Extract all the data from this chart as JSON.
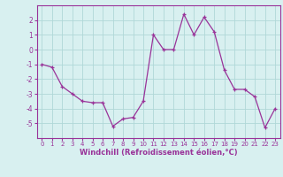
{
  "x": [
    0,
    1,
    2,
    3,
    4,
    5,
    6,
    7,
    8,
    9,
    10,
    11,
    12,
    13,
    14,
    15,
    16,
    17,
    18,
    19,
    20,
    21,
    22,
    23
  ],
  "y": [
    -1.0,
    -1.2,
    -2.5,
    -3.0,
    -3.5,
    -3.6,
    -3.6,
    -5.2,
    -4.7,
    -4.6,
    -3.5,
    1.0,
    0.0,
    0.0,
    2.4,
    1.0,
    2.2,
    1.2,
    -1.4,
    -2.7,
    -2.7,
    -3.2,
    -5.3,
    -4.0
  ],
  "line_color": "#993399",
  "marker": "+",
  "marker_size": 3,
  "bg_color": "#d8f0f0",
  "grid_color": "#b0d8d8",
  "axis_color": "#993399",
  "xlabel": "Windchill (Refroidissement éolien,°C)",
  "xlabel_fontsize": 6,
  "xlim": [
    -0.5,
    23.5
  ],
  "ylim": [
    -6,
    3
  ],
  "yticks": [
    -5,
    -4,
    -3,
    -2,
    -1,
    0,
    1,
    2
  ],
  "xticks": [
    0,
    1,
    2,
    3,
    4,
    5,
    6,
    7,
    8,
    9,
    10,
    11,
    12,
    13,
    14,
    15,
    16,
    17,
    18,
    19,
    20,
    21,
    22,
    23
  ],
  "tick_fontsize": 5,
  "linewidth": 0.9
}
